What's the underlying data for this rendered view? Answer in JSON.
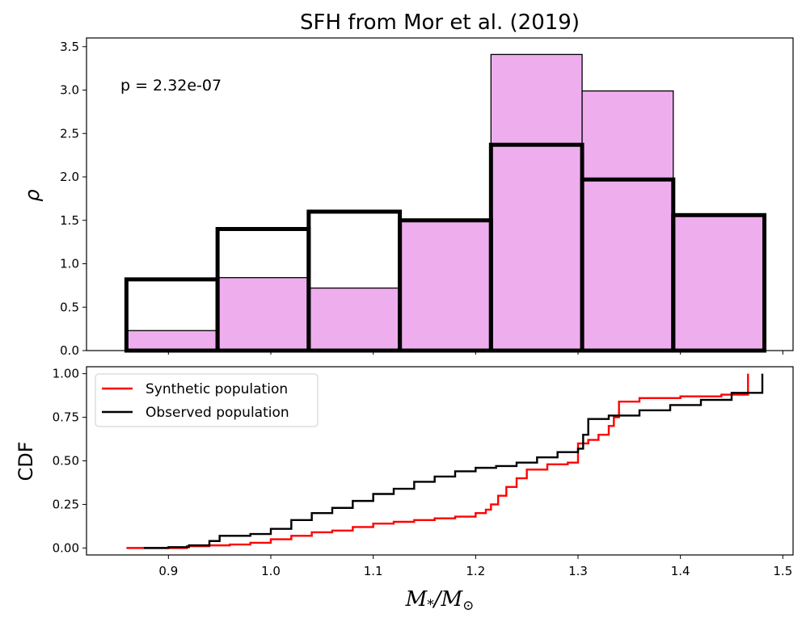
{
  "chart_data": [
    {
      "type": "bar",
      "title": "SFH from Mor et al. (2019)",
      "xlabel": "",
      "ylabel": "ρ",
      "ylim": [
        0,
        3.6
      ],
      "xlim": [
        0.82,
        1.51
      ],
      "yticks": [
        "0.0",
        "0.5",
        "1.0",
        "1.5",
        "2.0",
        "2.5",
        "3.0",
        "3.5"
      ],
      "bin_edges": [
        0.859,
        0.948,
        1.037,
        1.126,
        1.215,
        1.304,
        1.393,
        1.482
      ],
      "series": [
        {
          "name": "Synthetic population",
          "style": "filled",
          "color": "#eeaeee",
          "values": [
            0.23,
            0.84,
            0.72,
            1.5,
            3.41,
            2.99,
            1.56
          ]
        },
        {
          "name": "Observed population",
          "style": "step-outline",
          "color": "#000000",
          "values": [
            0.82,
            1.4,
            1.6,
            1.5,
            2.37,
            1.97,
            1.56
          ]
        }
      ],
      "annotation": "p = 2.32e-07"
    },
    {
      "type": "line",
      "xlabel": "M*/M⊙",
      "xlabel_main": "M",
      "xlabel_sub": "*",
      "xlabel_mid": "/M",
      "xlabel_sun": "⊙",
      "ylabel": "CDF",
      "xlim": [
        0.82,
        1.51
      ],
      "ylim": [
        -0.04,
        1.04
      ],
      "xticks": [
        "0.9",
        "1.0",
        "1.1",
        "1.2",
        "1.3",
        "1.4",
        "1.5"
      ],
      "yticks": [
        "0.00",
        "0.25",
        "0.50",
        "0.75",
        "1.00"
      ],
      "legend_position": "top-left",
      "series": [
        {
          "name": "Synthetic population",
          "color": "#ff0000",
          "x": [
            0.859,
            0.89,
            0.91,
            0.918,
            0.94,
            0.96,
            0.98,
            1.0,
            1.02,
            1.04,
            1.06,
            1.08,
            1.1,
            1.12,
            1.14,
            1.16,
            1.18,
            1.2,
            1.21,
            1.215,
            1.222,
            1.23,
            1.24,
            1.25,
            1.27,
            1.29,
            1.3,
            1.31,
            1.32,
            1.33,
            1.335,
            1.34,
            1.36,
            1.39,
            1.4,
            1.44,
            1.466,
            1.466
          ],
          "y": [
            0.0,
            0.0,
            0.0,
            0.01,
            0.015,
            0.02,
            0.03,
            0.05,
            0.07,
            0.09,
            0.1,
            0.12,
            0.14,
            0.15,
            0.16,
            0.17,
            0.18,
            0.2,
            0.22,
            0.25,
            0.3,
            0.35,
            0.4,
            0.45,
            0.48,
            0.49,
            0.6,
            0.62,
            0.65,
            0.7,
            0.75,
            0.84,
            0.86,
            0.86,
            0.87,
            0.88,
            0.9,
            1.0
          ]
        },
        {
          "name": "Observed population",
          "color": "#000000",
          "x": [
            0.876,
            0.9,
            0.92,
            0.94,
            0.95,
            0.98,
            1.0,
            1.02,
            1.04,
            1.06,
            1.08,
            1.1,
            1.12,
            1.14,
            1.16,
            1.18,
            1.2,
            1.22,
            1.24,
            1.26,
            1.28,
            1.3,
            1.305,
            1.31,
            1.33,
            1.36,
            1.39,
            1.42,
            1.45,
            1.48
          ],
          "y": [
            0.0,
            0.005,
            0.015,
            0.04,
            0.07,
            0.08,
            0.11,
            0.16,
            0.2,
            0.23,
            0.27,
            0.31,
            0.34,
            0.38,
            0.41,
            0.44,
            0.46,
            0.47,
            0.49,
            0.52,
            0.55,
            0.57,
            0.65,
            0.74,
            0.76,
            0.79,
            0.82,
            0.85,
            0.89,
            1.0
          ]
        }
      ]
    }
  ]
}
